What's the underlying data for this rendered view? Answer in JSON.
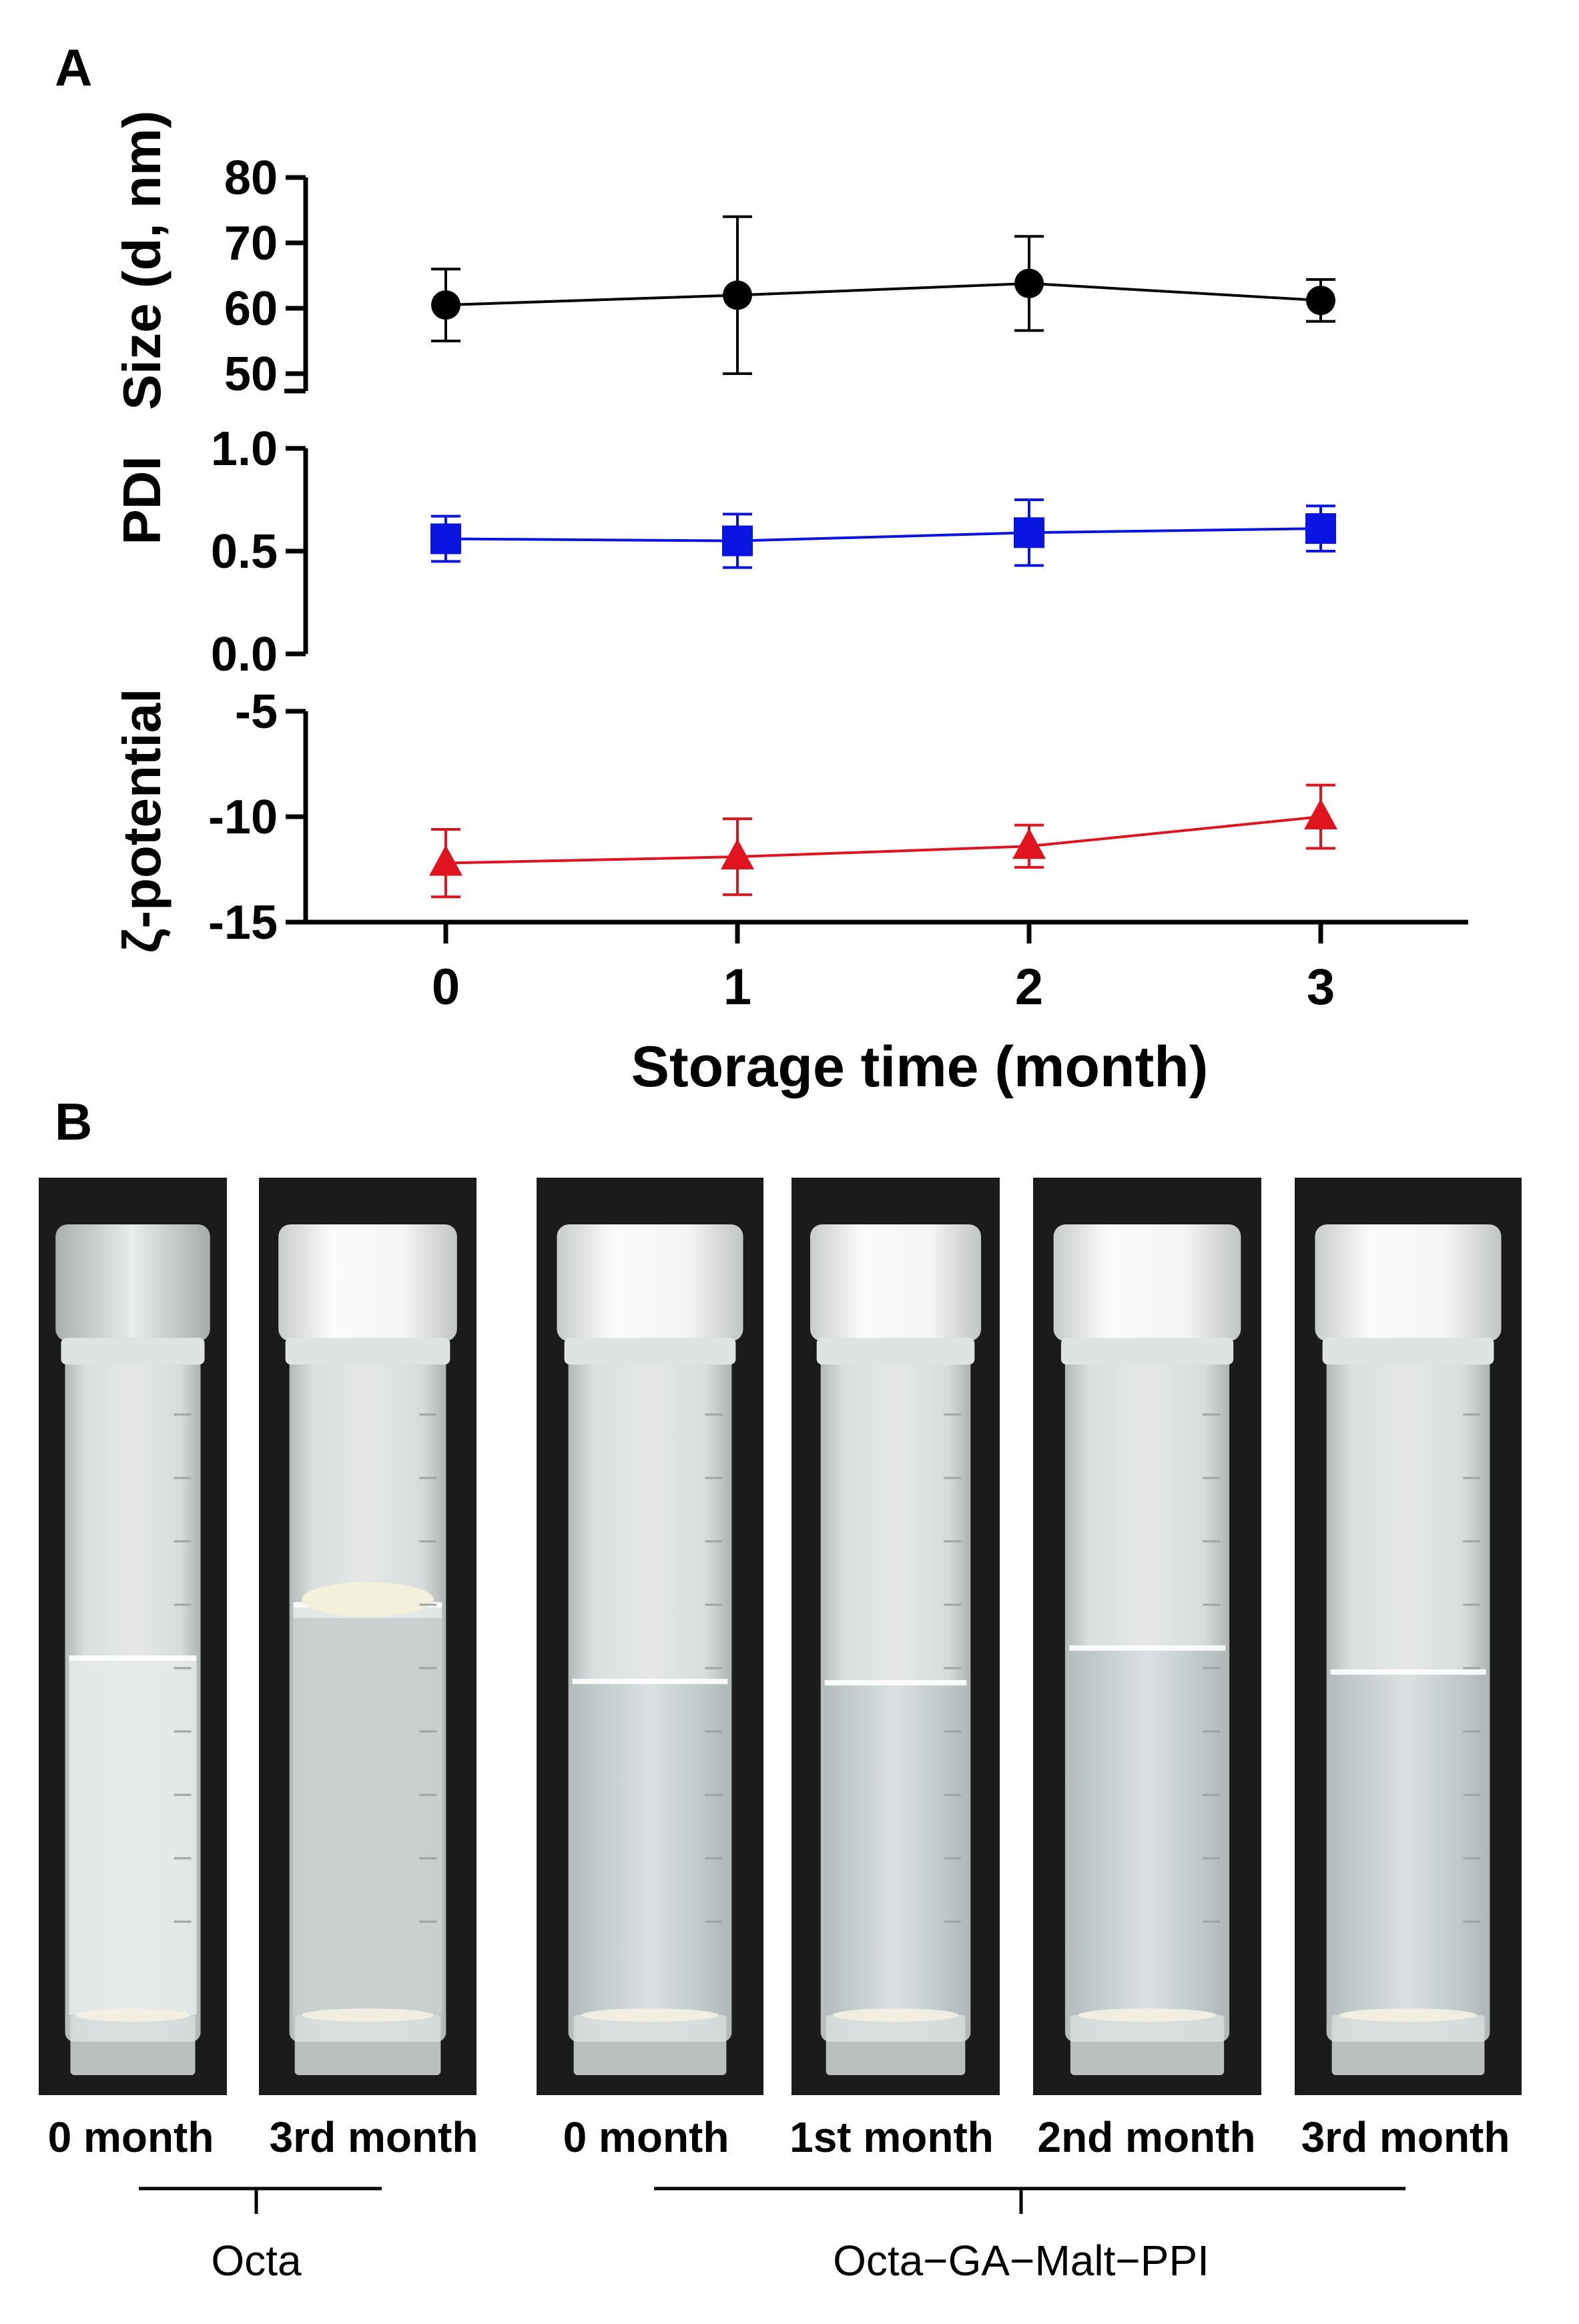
{
  "panels": {
    "a": "A",
    "b": "B"
  },
  "chart_data": {
    "type": "line",
    "x": [
      0,
      1,
      2,
      3
    ],
    "xlabel": "Storage time (month)",
    "x_tick_labels": [
      "0",
      "1",
      "2",
      "3"
    ],
    "xlim": [
      -0.5,
      3.5
    ],
    "grid": false,
    "subplots": [
      {
        "ylabel": "Size (d, nm)",
        "ylim": [
          48,
          80
        ],
        "y_ticks": [
          "50",
          "60",
          "70",
          "80"
        ],
        "marker": "circle",
        "color": "#000000",
        "values": [
          60.5,
          62,
          63.8,
          61.2
        ],
        "error": [
          5.5,
          12,
          7.2,
          3.2
        ]
      },
      {
        "ylabel": "PDI",
        "ylim": [
          0,
          1.0
        ],
        "y_ticks": [
          "0.0",
          "0.5",
          "1.0"
        ],
        "marker": "square",
        "color": "#0a14e0",
        "values": [
          0.56,
          0.55,
          0.59,
          0.61
        ],
        "error": [
          0.11,
          0.13,
          0.16,
          0.11
        ]
      },
      {
        "ylabel": "ζ-potential",
        "ylim": [
          -15,
          -5
        ],
        "y_ticks": [
          "-5",
          "-10",
          "-15"
        ],
        "marker": "triangle",
        "color": "#e0141e",
        "values": [
          -12.2,
          -11.9,
          -11.4,
          -10.0
        ],
        "error": [
          1.6,
          1.8,
          1.0,
          1.5
        ]
      }
    ]
  },
  "photos": {
    "labels": [
      "0 month",
      "3rd month",
      "0 month",
      "1st month",
      "2nd month",
      "3rd month"
    ],
    "groups": [
      "Octa",
      "Octa−GA−Malt−PPI"
    ]
  }
}
